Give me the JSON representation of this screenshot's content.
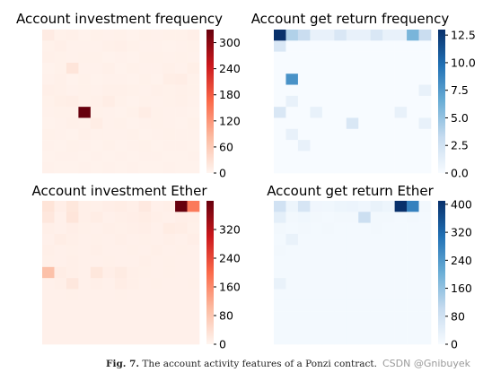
{
  "figure": {
    "caption_label": "Fig. 7.",
    "caption_text": "The account activity features of a Ponzi contract.",
    "watermark": "CSDN @Gnibuyek"
  },
  "chart_data": [
    {
      "type": "heatmap",
      "title": "Account investment frequency",
      "colormap": "Reds",
      "vmin": 0,
      "vmax": 330,
      "colorbar_ticks": [
        "0",
        "60",
        "120",
        "180",
        "240",
        "300"
      ],
      "rows": 13,
      "cols": 13,
      "values": [
        [
          14,
          6,
          7,
          4,
          6,
          5,
          6,
          4,
          6,
          5,
          6,
          6,
          8
        ],
        [
          6,
          8,
          5,
          5,
          5,
          7,
          8,
          6,
          5,
          5,
          4,
          5,
          6
        ],
        [
          7,
          6,
          5,
          6,
          6,
          4,
          5,
          4,
          6,
          6,
          5,
          6,
          5
        ],
        [
          4,
          6,
          23,
          5,
          5,
          7,
          4,
          6,
          5,
          5,
          7,
          5,
          9
        ],
        [
          5,
          7,
          4,
          6,
          4,
          5,
          5,
          4,
          6,
          4,
          10,
          11,
          6
        ],
        [
          8,
          7,
          5,
          6,
          5,
          7,
          7,
          6,
          5,
          7,
          6,
          7,
          6
        ],
        [
          6,
          9,
          10,
          6,
          7,
          12,
          6,
          4,
          6,
          5,
          6,
          7,
          5
        ],
        [
          5,
          6,
          6,
          330,
          6,
          5,
          4,
          6,
          11,
          6,
          5,
          5,
          4
        ],
        [
          4,
          5,
          7,
          6,
          11,
          5,
          6,
          4,
          5,
          6,
          5,
          4,
          6
        ],
        [
          6,
          5,
          4,
          7,
          5,
          5,
          5,
          6,
          4,
          5,
          6,
          5,
          5
        ],
        [
          5,
          4,
          6,
          5,
          4,
          6,
          4,
          5,
          6,
          4,
          5,
          5,
          4
        ],
        [
          4,
          5,
          5,
          4,
          5,
          4,
          5,
          4,
          5,
          5,
          4,
          4,
          5
        ],
        [
          5,
          4,
          4,
          5,
          4,
          5,
          4,
          5,
          4,
          4,
          5,
          4,
          4
        ]
      ]
    },
    {
      "type": "heatmap",
      "title": "Account get return frequency",
      "colormap": "Blues",
      "vmin": 0,
      "vmax": 13,
      "colorbar_ticks": [
        "0.0",
        "2.5",
        "5.0",
        "7.5",
        "10.0",
        "12.5"
      ],
      "rows": 13,
      "cols": 13,
      "values": [
        [
          13,
          4,
          3,
          1,
          1,
          2,
          1,
          1,
          2,
          1,
          1,
          6,
          3
        ],
        [
          2,
          0,
          0,
          0,
          0,
          0,
          0,
          0,
          0,
          0,
          0,
          0,
          0
        ],
        [
          0,
          0,
          0,
          0,
          0,
          0,
          0,
          0,
          0,
          0,
          0,
          0,
          0
        ],
        [
          0,
          0,
          0,
          0,
          0,
          0,
          0,
          0,
          0,
          0,
          0,
          0,
          0
        ],
        [
          0,
          8,
          0,
          0,
          0,
          0,
          0,
          0,
          0,
          0,
          0,
          0,
          0
        ],
        [
          0,
          0,
          0,
          0,
          0,
          0,
          0,
          0,
          0,
          0,
          0,
          0,
          1
        ],
        [
          0,
          1,
          0,
          0,
          0,
          0,
          0,
          0,
          0,
          0,
          0,
          0,
          0
        ],
        [
          2,
          0,
          0,
          1,
          0,
          0,
          0,
          0,
          0,
          0,
          1,
          0,
          0
        ],
        [
          0,
          0,
          0,
          0,
          0,
          0,
          2,
          0,
          0,
          0,
          0,
          0,
          1
        ],
        [
          0,
          1,
          0,
          0,
          0,
          0,
          0,
          0,
          0,
          0,
          0,
          0,
          0
        ],
        [
          0,
          0,
          1,
          0,
          0,
          0,
          0,
          0,
          0,
          0,
          0,
          0,
          0
        ],
        [
          0,
          0,
          0,
          0,
          0,
          0,
          0,
          0,
          0,
          0,
          0,
          0,
          0
        ],
        [
          0,
          0,
          0,
          0,
          0,
          0,
          0,
          0,
          0,
          0,
          0,
          0,
          0
        ]
      ]
    },
    {
      "type": "heatmap",
      "title": "Account investment Ether",
      "colormap": "Reds",
      "vmin": 0,
      "vmax": 400,
      "colorbar_ticks": [
        "0",
        "80",
        "160",
        "240",
        "320"
      ],
      "rows": 13,
      "cols": 13,
      "values": [
        [
          30,
          12,
          25,
          10,
          9,
          12,
          14,
          10,
          20,
          8,
          10,
          400,
          180
        ],
        [
          24,
          8,
          28,
          10,
          14,
          8,
          10,
          12,
          14,
          10,
          8,
          12,
          10
        ],
        [
          10,
          8,
          12,
          9,
          8,
          10,
          9,
          10,
          12,
          8,
          16,
          14,
          9
        ],
        [
          8,
          14,
          10,
          8,
          9,
          8,
          10,
          8,
          9,
          8,
          10,
          8,
          12
        ],
        [
          10,
          8,
          9,
          8,
          10,
          8,
          8,
          9,
          8,
          10,
          8,
          9,
          8
        ],
        [
          9,
          8,
          10,
          8,
          8,
          9,
          8,
          8,
          10,
          8,
          9,
          8,
          8
        ],
        [
          90,
          14,
          10,
          8,
          25,
          12,
          18,
          10,
          9,
          8,
          9,
          8,
          8
        ],
        [
          8,
          10,
          24,
          8,
          10,
          8,
          14,
          10,
          8,
          9,
          8,
          8,
          9
        ],
        [
          8,
          8,
          9,
          8,
          8,
          8,
          9,
          8,
          8,
          8,
          8,
          8,
          8
        ],
        [
          8,
          8,
          8,
          8,
          8,
          8,
          8,
          8,
          8,
          8,
          8,
          8,
          8
        ],
        [
          8,
          8,
          8,
          8,
          8,
          8,
          8,
          8,
          8,
          8,
          8,
          8,
          8
        ],
        [
          8,
          8,
          8,
          8,
          8,
          8,
          8,
          8,
          8,
          8,
          8,
          8,
          8
        ],
        [
          8,
          8,
          8,
          8,
          8,
          8,
          8,
          8,
          8,
          8,
          8,
          8,
          8
        ]
      ]
    },
    {
      "type": "heatmap",
      "title": "Account get return Ether",
      "colormap": "Blues",
      "vmin": 0,
      "vmax": 410,
      "colorbar_ticks": [
        "0",
        "80",
        "160",
        "240",
        "320",
        "400"
      ],
      "rows": 13,
      "cols": 13,
      "values": [
        [
          80,
          20,
          70,
          15,
          14,
          20,
          22,
          16,
          30,
          20,
          410,
          280,
          10
        ],
        [
          40,
          10,
          14,
          10,
          8,
          10,
          10,
          90,
          10,
          10,
          8,
          10,
          8
        ],
        [
          10,
          8,
          10,
          8,
          10,
          8,
          8,
          8,
          10,
          8,
          8,
          8,
          8
        ],
        [
          8,
          30,
          8,
          8,
          8,
          8,
          8,
          8,
          8,
          8,
          8,
          8,
          8
        ],
        [
          10,
          8,
          8,
          8,
          8,
          8,
          8,
          8,
          8,
          8,
          8,
          8,
          8
        ],
        [
          8,
          8,
          8,
          8,
          8,
          8,
          8,
          8,
          8,
          8,
          8,
          8,
          8
        ],
        [
          8,
          8,
          8,
          8,
          8,
          8,
          8,
          8,
          8,
          8,
          8,
          8,
          8
        ],
        [
          30,
          8,
          8,
          8,
          8,
          8,
          8,
          8,
          8,
          8,
          8,
          8,
          8
        ],
        [
          8,
          8,
          8,
          8,
          8,
          8,
          8,
          8,
          8,
          8,
          8,
          8,
          8
        ],
        [
          8,
          8,
          8,
          8,
          8,
          8,
          8,
          8,
          8,
          8,
          8,
          8,
          8
        ],
        [
          8,
          8,
          8,
          8,
          8,
          8,
          8,
          8,
          8,
          8,
          8,
          8,
          8
        ],
        [
          8,
          8,
          8,
          8,
          8,
          8,
          8,
          8,
          8,
          8,
          8,
          8,
          8
        ],
        [
          8,
          8,
          8,
          8,
          8,
          8,
          8,
          8,
          8,
          8,
          8,
          8,
          8
        ]
      ]
    }
  ]
}
